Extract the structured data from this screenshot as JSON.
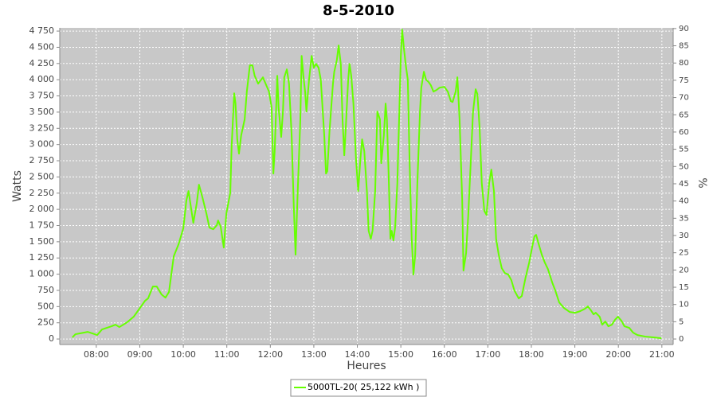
{
  "chart_data": {
    "type": "line",
    "title": "8-5-2010",
    "x_label": "Heures",
    "y_label": "Watts",
    "y2_label": "%",
    "xlim": [
      7.16,
      21.26
    ],
    "xticks": [
      {
        "value": 8,
        "label": "08:00"
      },
      {
        "value": 9,
        "label": "09:00"
      },
      {
        "value": 10,
        "label": "10:00"
      },
      {
        "value": 11,
        "label": "11:00"
      },
      {
        "value": 12,
        "label": "12:00"
      },
      {
        "value": 13,
        "label": "13:00"
      },
      {
        "value": 14,
        "label": "14:00"
      },
      {
        "value": 15,
        "label": "15:00"
      },
      {
        "value": 16,
        "label": "16:00"
      },
      {
        "value": 17,
        "label": "17:00"
      },
      {
        "value": 18,
        "label": "18:00"
      },
      {
        "value": 19,
        "label": "19:00"
      },
      {
        "value": 20,
        "label": "20:00"
      },
      {
        "value": 21,
        "label": "21:00"
      }
    ],
    "ylim": [
      -85,
      4800
    ],
    "yticks": [
      0,
      250,
      500,
      750,
      {
        "value": 1000,
        "label": "1 000"
      },
      {
        "value": 1250,
        "label": "1 250"
      },
      {
        "value": 1500,
        "label": "1 500"
      },
      {
        "value": 1750,
        "label": "1 750"
      },
      {
        "value": 2000,
        "label": "2 000"
      },
      {
        "value": 2250,
        "label": "2 250"
      },
      {
        "value": 2500,
        "label": "2 500"
      },
      {
        "value": 2750,
        "label": "2 750"
      },
      {
        "value": 3000,
        "label": "3 000"
      },
      {
        "value": 3250,
        "label": "3 250"
      },
      {
        "value": 3500,
        "label": "3 500"
      },
      {
        "value": 3750,
        "label": "3 750"
      },
      {
        "value": 4000,
        "label": "4 000"
      },
      {
        "value": 4250,
        "label": "4 250"
      },
      {
        "value": 4500,
        "label": "4 500"
      },
      {
        "value": 4750,
        "label": "4 750"
      }
    ],
    "y2lim": [
      -1.6,
      90.2
    ],
    "y2ticks": [
      0,
      5,
      10,
      15,
      20,
      25,
      30,
      35,
      40,
      45,
      50,
      55,
      60,
      65,
      70,
      75,
      80,
      85,
      90
    ],
    "grid": true,
    "legend": "bottom",
    "x": [
      7.45,
      7.52,
      7.71,
      7.8,
      8.02,
      8.13,
      8.35,
      8.44,
      8.53,
      8.71,
      8.86,
      8.99,
      9.12,
      9.19,
      9.3,
      9.39,
      9.5,
      9.59,
      9.67,
      9.78,
      9.89,
      10.0,
      10.07,
      10.12,
      10.18,
      10.23,
      10.31,
      10.36,
      10.44,
      10.53,
      10.6,
      10.69,
      10.77,
      10.8,
      10.86,
      10.93,
      10.99,
      11.08,
      11.11,
      11.17,
      11.2,
      11.24,
      11.28,
      11.33,
      11.41,
      11.46,
      11.53,
      11.59,
      11.64,
      11.72,
      11.79,
      11.83,
      11.9,
      11.97,
      12.03,
      12.07,
      12.1,
      12.16,
      12.19,
      12.25,
      12.29,
      12.32,
      12.38,
      12.43,
      12.49,
      12.54,
      12.58,
      12.63,
      12.69,
      12.72,
      12.76,
      12.8,
      12.83,
      12.89,
      12.95,
      13.0,
      13.05,
      13.11,
      13.16,
      13.24,
      13.28,
      13.31,
      13.36,
      13.44,
      13.47,
      13.53,
      13.57,
      13.62,
      13.66,
      13.7,
      13.73,
      13.79,
      13.82,
      13.86,
      13.91,
      13.97,
      14.02,
      14.07,
      14.11,
      14.16,
      14.22,
      14.26,
      14.31,
      14.35,
      14.41,
      14.46,
      14.52,
      14.55,
      14.61,
      14.65,
      14.68,
      14.72,
      14.76,
      14.79,
      14.83,
      14.87,
      14.92,
      14.96,
      15.0,
      15.03,
      15.07,
      15.11,
      15.16,
      15.2,
      15.25,
      15.29,
      15.33,
      15.38,
      15.44,
      15.47,
      15.53,
      15.58,
      15.64,
      15.69,
      15.75,
      15.82,
      15.89,
      16.0,
      16.08,
      16.15,
      16.19,
      16.26,
      16.3,
      16.35,
      16.41,
      16.44,
      16.5,
      16.55,
      16.61,
      16.66,
      16.72,
      16.76,
      16.81,
      16.86,
      16.92,
      16.97,
      17.03,
      17.08,
      17.14,
      17.19,
      17.25,
      17.32,
      17.39,
      17.47,
      17.54,
      17.61,
      17.71,
      17.78,
      17.87,
      17.95,
      18.02,
      18.07,
      18.11,
      18.16,
      18.24,
      18.31,
      18.38,
      18.48,
      18.55,
      18.64,
      18.75,
      18.88,
      19.01,
      19.12,
      19.23,
      19.3,
      19.37,
      19.43,
      19.48,
      19.57,
      19.63,
      19.7,
      19.77,
      19.85,
      19.92,
      19.99,
      20.07,
      20.14,
      20.25,
      20.34,
      20.44,
      20.62,
      20.8,
      20.99
    ],
    "series": [
      {
        "name": "5000TL-20( 25,122 kWh )",
        "color": "#66ff00",
        "values": [
          25,
          74,
          98,
          110,
          61,
          147,
          196,
          221,
          184,
          258,
          344,
          466,
          589,
          626,
          810,
          810,
          687,
          638,
          724,
          1276,
          1460,
          1706,
          2135,
          2282,
          2012,
          1791,
          2098,
          2380,
          2184,
          1939,
          1718,
          1693,
          1755,
          1828,
          1730,
          1411,
          1939,
          2258,
          2957,
          3791,
          3632,
          3080,
          2859,
          3141,
          3387,
          3816,
          4221,
          4221,
          4061,
          3939,
          4000,
          4037,
          3926,
          3816,
          3571,
          2552,
          2896,
          4061,
          3571,
          3117,
          3509,
          4037,
          4160,
          3939,
          3141,
          2037,
          1301,
          2282,
          3387,
          4368,
          4061,
          3816,
          3509,
          4000,
          4368,
          4184,
          4245,
          4184,
          4000,
          3141,
          2552,
          2589,
          3202,
          3939,
          4123,
          4307,
          4528,
          4245,
          3387,
          2834,
          3202,
          4000,
          4245,
          4061,
          3632,
          2773,
          2282,
          2773,
          3080,
          2896,
          2282,
          1669,
          1546,
          1669,
          2282,
          3509,
          3387,
          2712,
          3141,
          3632,
          3387,
          2528,
          1546,
          1669,
          1521,
          1730,
          2405,
          3387,
          4368,
          4773,
          4491,
          4245,
          4000,
          2773,
          1546,
          994,
          1301,
          2405,
          3509,
          3877,
          4123,
          4000,
          3963,
          3914,
          3816,
          3841,
          3877,
          3890,
          3816,
          3669,
          3656,
          3816,
          4037,
          3387,
          2160,
          1055,
          1325,
          1914,
          2773,
          3509,
          3853,
          3779,
          3264,
          2405,
          1975,
          1914,
          2405,
          2614,
          2282,
          1546,
          1301,
          1092,
          1018,
          994,
          908,
          748,
          626,
          663,
          957,
          1178,
          1423,
          1583,
          1607,
          1485,
          1301,
          1178,
          1080,
          871,
          748,
          564,
          479,
          417,
          405,
          429,
          466,
          503,
          442,
          380,
          405,
          344,
          221,
          270,
          196,
          221,
          294,
          344,
          282,
          196,
          172,
          98,
          61,
          37,
          25,
          12
        ]
      }
    ]
  }
}
